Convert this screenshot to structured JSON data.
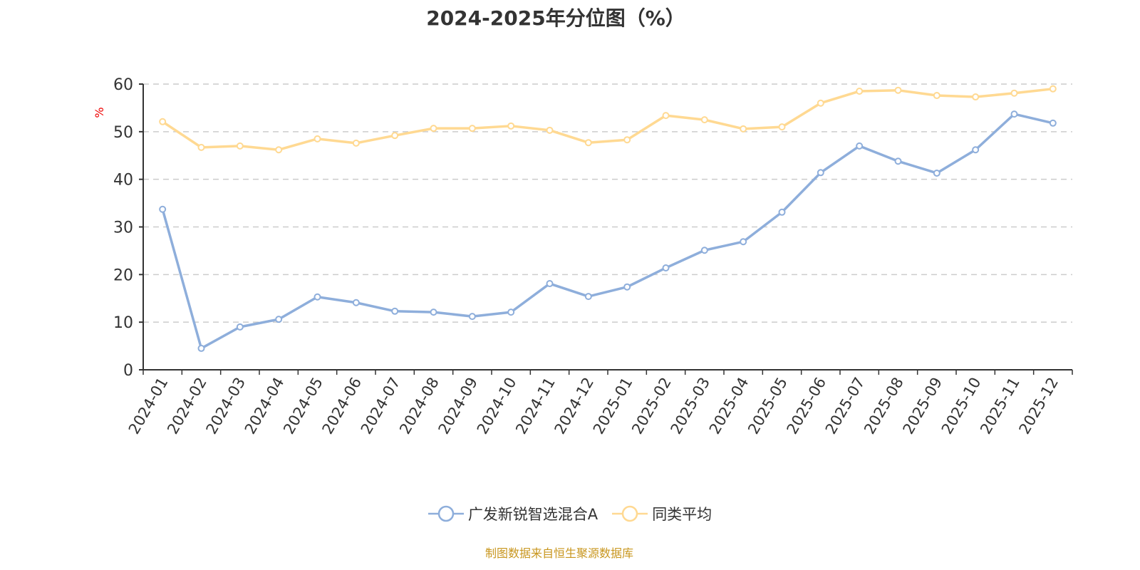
{
  "chart_data": {
    "type": "line",
    "title": "2024-2025年分位图（%）",
    "ylabel": "%",
    "xlabel": "",
    "ylim": [
      0,
      60
    ],
    "yticks": [
      0,
      10,
      20,
      30,
      40,
      50,
      60
    ],
    "grid": true,
    "legend_position": "bottom",
    "categories": [
      "2024-01",
      "2024-02",
      "2024-03",
      "2024-04",
      "2024-05",
      "2024-06",
      "2024-07",
      "2024-08",
      "2024-09",
      "2024-10",
      "2024-11",
      "2024-12",
      "2025-01",
      "2025-02",
      "2025-03",
      "2025-04",
      "2025-05",
      "2025-06",
      "2025-07",
      "2025-08",
      "2025-09",
      "2025-10",
      "2025-11",
      "2025-12"
    ],
    "series": [
      {
        "name": "广发新锐智选混合A",
        "color": "#8eaedb",
        "values": [
          33.7,
          4.5,
          9.0,
          10.6,
          15.3,
          14.1,
          12.3,
          12.1,
          11.2,
          12.1,
          18.1,
          15.4,
          17.4,
          21.4,
          25.1,
          26.9,
          33.1,
          41.4,
          47.0,
          43.8,
          41.3,
          46.2,
          53.7,
          51.8
        ]
      },
      {
        "name": "同类平均",
        "color": "#ffd992",
        "values": [
          52.1,
          46.7,
          47.0,
          46.2,
          48.5,
          47.6,
          49.2,
          50.7,
          50.7,
          51.2,
          50.3,
          47.7,
          48.3,
          53.4,
          52.5,
          50.6,
          51.0,
          56.0,
          58.5,
          58.7,
          57.6,
          57.3,
          58.1,
          59.0
        ]
      }
    ]
  },
  "source": "制图数据来自恒生聚源数据库"
}
